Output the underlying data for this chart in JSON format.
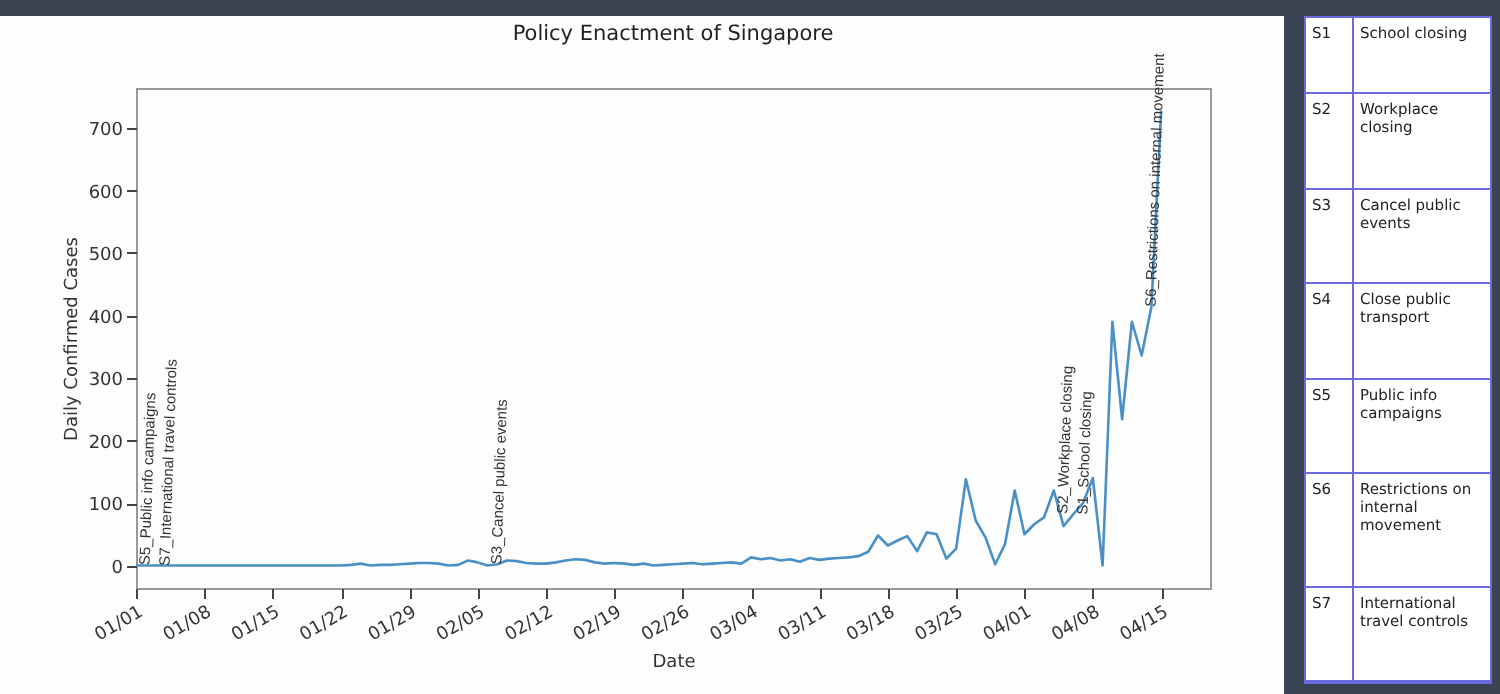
{
  "chart_data": [
    {
      "type": "line",
      "title": "Policy Enactment of Singapore",
      "xlabel": "Date",
      "ylabel": "Daily Confirmed Cases",
      "x": [
        "--01-01",
        "--01-02",
        "--01-03",
        "--01-04",
        "--01-05",
        "--01-06",
        "--01-07",
        "--01-08",
        "--01-09",
        "--01-10",
        "--01-11",
        "--01-12",
        "--01-13",
        "--01-14",
        "--01-15",
        "--01-16",
        "--01-17",
        "--01-18",
        "--01-19",
        "--01-20",
        "--01-21",
        "--01-22",
        "--01-23",
        "--01-24",
        "--01-25",
        "--01-26",
        "--01-27",
        "--01-28",
        "--01-29",
        "--01-30",
        "--01-31",
        "--02-01",
        "--02-02",
        "--02-03",
        "--02-04",
        "--02-05",
        "--02-06",
        "--02-07",
        "--02-08",
        "--02-09",
        "--02-10",
        "--02-11",
        "--02-12",
        "--02-13",
        "--02-14",
        "--02-15",
        "--02-16",
        "--02-17",
        "--02-18",
        "--02-19",
        "--02-20",
        "--02-21",
        "--02-22",
        "--02-23",
        "--02-24",
        "--02-25",
        "--02-26",
        "--02-27",
        "--02-28",
        "--02-29",
        "--03-01",
        "--03-02",
        "--03-03",
        "--03-04",
        "--03-05",
        "--03-06",
        "--03-07",
        "--03-08",
        "--03-09",
        "--03-10",
        "--03-11",
        "--03-12",
        "--03-13",
        "--03-14",
        "--03-15",
        "--03-16",
        "--03-17",
        "--03-18",
        "--03-19",
        "--03-20",
        "--03-21",
        "--03-22",
        "--03-23",
        "--03-24",
        "--03-25",
        "--03-26",
        "--03-27",
        "--03-28",
        "--03-29",
        "--03-30",
        "--03-31",
        "--04-01",
        "--04-02",
        "--04-03",
        "--04-04",
        "--04-05",
        "--04-06",
        "--04-07",
        "--04-08",
        "--04-09",
        "--04-10",
        "--04-11",
        "--04-12",
        "--04-13",
        "--04-14",
        "--04-15"
      ],
      "series": [
        {
          "color": "#4a90c4",
          "values": [
            0,
            0,
            0,
            0,
            0,
            0,
            0,
            0,
            0,
            0,
            0,
            0,
            0,
            0,
            0,
            0,
            0,
            0,
            0,
            0,
            0,
            0,
            1,
            3,
            0,
            1,
            1,
            2,
            3,
            4,
            4,
            3,
            0,
            1,
            8,
            5,
            0,
            2,
            8,
            7,
            4,
            3,
            3,
            5,
            8,
            10,
            9,
            5,
            3,
            4,
            3,
            1,
            3,
            0,
            1,
            2,
            3,
            4,
            2,
            3,
            4,
            5,
            3,
            13,
            10,
            12,
            8,
            10,
            6,
            12,
            9,
            11,
            12,
            13,
            15,
            22,
            48,
            32,
            40,
            47,
            23,
            53,
            50,
            11,
            27,
            138,
            72,
            45,
            2,
            34,
            120,
            50,
            66,
            77,
            120,
            63,
            82,
            100,
            140,
            0,
            390,
            234,
            390,
            336,
            414,
            728
          ]
        }
      ],
      "xlim": [
        "--01-01",
        "--04-20"
      ],
      "xticks": [
        {
          "value": "--01-01",
          "label": "01/01"
        },
        {
          "value": "--01-08",
          "label": "01/08"
        },
        {
          "value": "--01-15",
          "label": "01/15"
        },
        {
          "value": "--01-22",
          "label": "01/22"
        },
        {
          "value": "--01-29",
          "label": "01/29"
        },
        {
          "value": "--02-05",
          "label": "02/05"
        },
        {
          "value": "--02-12",
          "label": "02/12"
        },
        {
          "value": "--02-19",
          "label": "02/19"
        },
        {
          "value": "--02-26",
          "label": "02/26"
        },
        {
          "value": "--03-04",
          "label": "03/04"
        },
        {
          "value": "--03-11",
          "label": "03/11"
        },
        {
          "value": "--03-18",
          "label": "03/18"
        },
        {
          "value": "--03-25",
          "label": "03/25"
        },
        {
          "value": "--04-01",
          "label": "04/01"
        },
        {
          "value": "--04-08",
          "label": "04/08"
        },
        {
          "value": "--04-15",
          "label": "04/15"
        }
      ],
      "ylim": [
        -36,
        764
      ],
      "yticks": [
        0,
        100,
        200,
        300,
        400,
        500,
        600,
        700
      ],
      "grid": false,
      "legend": false,
      "annotations": [
        {
          "text": "S5_Public info campaigns",
          "x": "--01-03",
          "y": 0
        },
        {
          "text": "S7_International travel controls",
          "x": "--01-03",
          "y": 0
        },
        {
          "text": "S3_Cancel public events",
          "x": "--02-07",
          "y": 2
        },
        {
          "text": "S2_Workplace closing",
          "x": "--04-06",
          "y": 82
        },
        {
          "text": "S1_School closing",
          "x": "--04-06",
          "y": 82
        },
        {
          "text": "S6_Restrictions on internal movement",
          "x": "--04-14",
          "y": 414
        }
      ]
    },
    {
      "type": "other",
      "annotations": [
        "S1",
        "School closing",
        "S2",
        "Workplace closing",
        "S3",
        "Cancel public events",
        "S4",
        "Close public transport",
        "S5",
        "Public info campaigns",
        "S6",
        "Restrictions on internal movement",
        "S7",
        "International travel controls"
      ]
    }
  ]
}
